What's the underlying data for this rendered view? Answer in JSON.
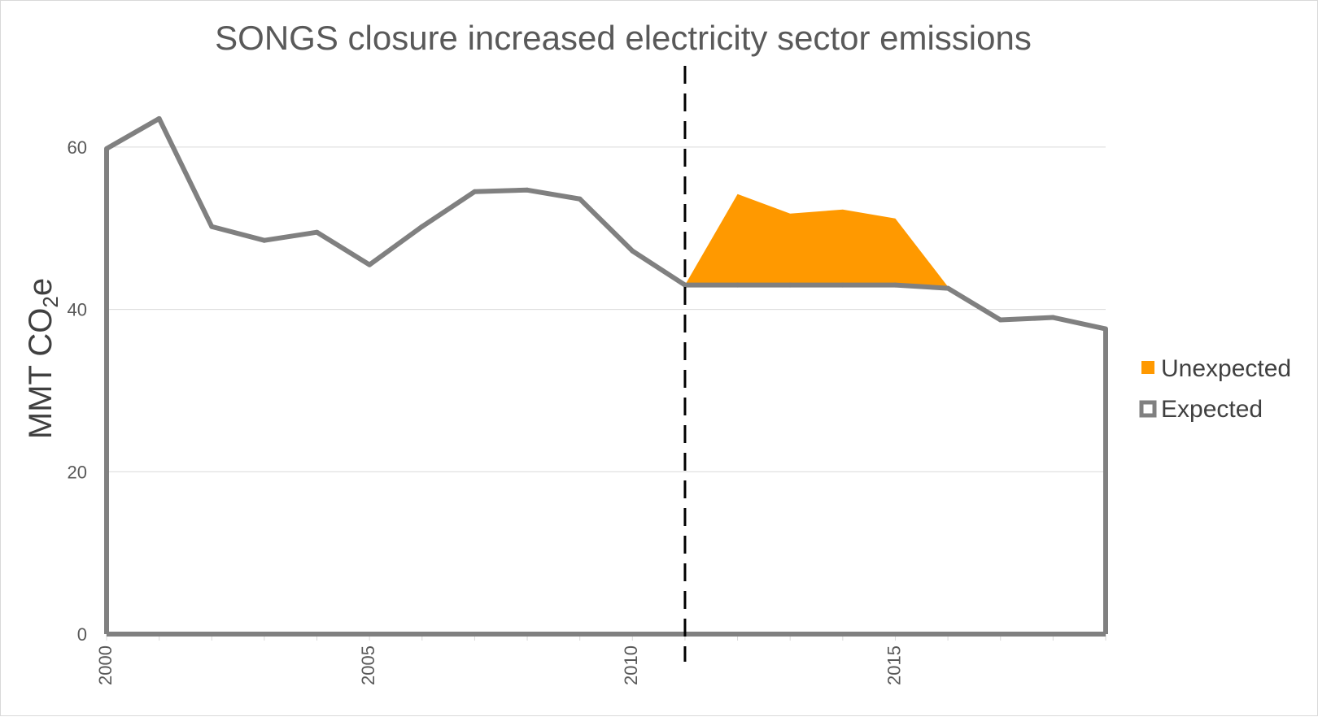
{
  "chart_data": {
    "type": "area",
    "title": "SONGS closure increased electricity sector emissions",
    "ylabel_main": "MMT CO",
    "ylabel_sub": "2",
    "ylabel_tail": "e",
    "xlabel": "",
    "xlim": [
      2000,
      2019
    ],
    "ylim": [
      0,
      70
    ],
    "yticks": [
      0,
      20,
      40,
      60
    ],
    "xticks": [
      2000,
      2005,
      2010,
      2015
    ],
    "grid": true,
    "legend_position": "right",
    "closure_year": 2011,
    "x": [
      2000,
      2001,
      2002,
      2003,
      2004,
      2005,
      2006,
      2007,
      2008,
      2009,
      2010,
      2011,
      2012,
      2013,
      2014,
      2015,
      2016,
      2017,
      2018,
      2019
    ],
    "series": [
      {
        "name": "Unexpected",
        "kind": "area",
        "color": "#ff9900",
        "x": [
          2011,
          2012,
          2013,
          2014,
          2015,
          2016
        ],
        "values": [
          43,
          54.2,
          51.8,
          52.3,
          51.2,
          42.8
        ]
      },
      {
        "name": "Expected",
        "kind": "line",
        "color": "#808080",
        "values": [
          59.8,
          63.5,
          50.2,
          48.5,
          49.5,
          45.5,
          50.2,
          54.5,
          54.7,
          53.6,
          47.2,
          43.0,
          43.0,
          43.0,
          43.0,
          43.0,
          42.6,
          38.7,
          39.0,
          37.6
        ]
      }
    ]
  }
}
